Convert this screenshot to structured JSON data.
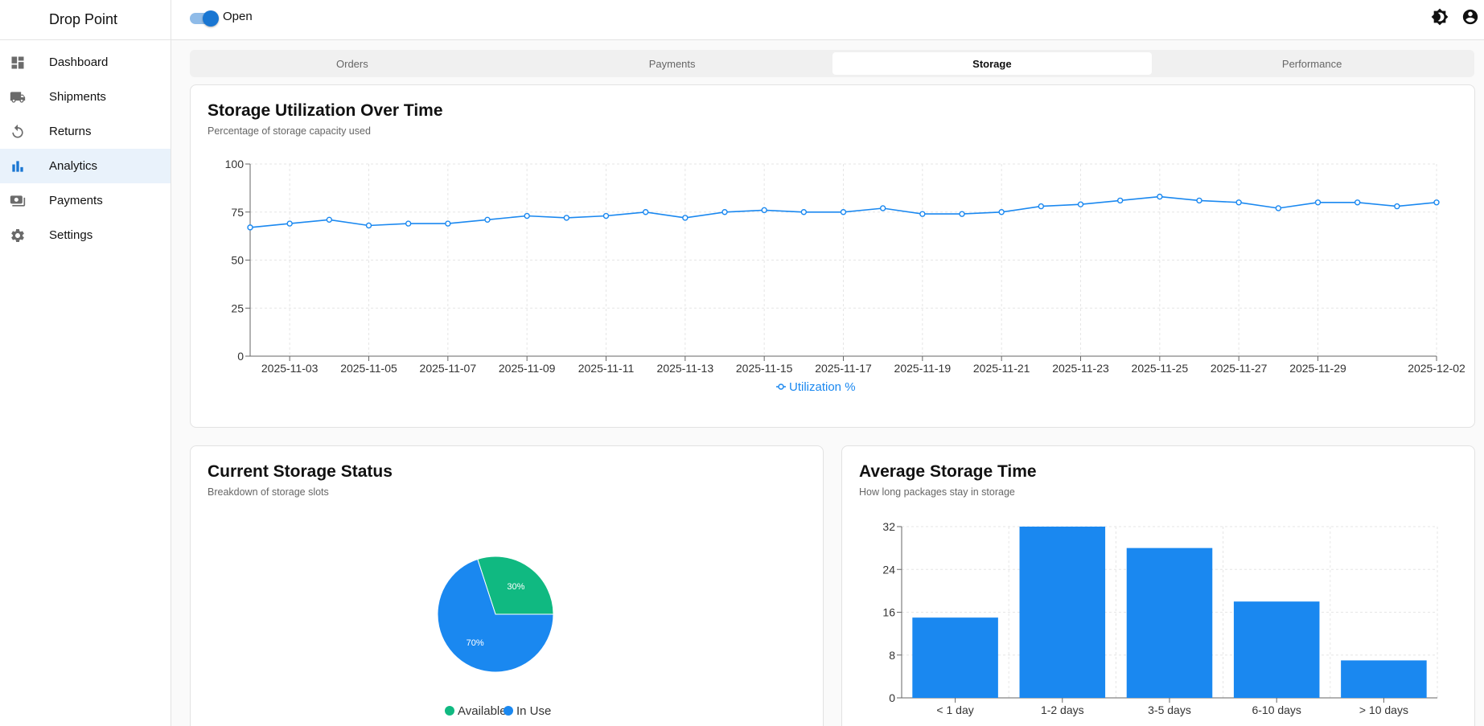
{
  "app": {
    "brand": "Drop Point"
  },
  "sidebar": {
    "items": [
      {
        "label": "Dashboard",
        "icon": "dashboard-icon",
        "active": false
      },
      {
        "label": "Shipments",
        "icon": "truck-icon",
        "active": false
      },
      {
        "label": "Returns",
        "icon": "undo-icon",
        "active": false
      },
      {
        "label": "Analytics",
        "icon": "bar-chart-icon",
        "active": true
      },
      {
        "label": "Payments",
        "icon": "payments-icon",
        "active": false
      },
      {
        "label": "Settings",
        "icon": "gear-icon",
        "active": false
      }
    ]
  },
  "topbar": {
    "status_label": "Open",
    "status_on": true,
    "theme_icon": "brightness-icon",
    "account_icon": "account-icon"
  },
  "tabs": [
    {
      "label": "Orders",
      "active": false
    },
    {
      "label": "Payments",
      "active": false
    },
    {
      "label": "Storage",
      "active": true
    },
    {
      "label": "Performance",
      "active": false
    }
  ],
  "colors": {
    "accent": "#1976d2",
    "series_blue": "#1a88f0",
    "series_green": "#10b981"
  },
  "utilization_card": {
    "title": "Storage Utilization Over Time",
    "subtitle": "Percentage of storage capacity used"
  },
  "status_card": {
    "title": "Current Storage Status",
    "subtitle": "Breakdown of storage slots"
  },
  "time_card": {
    "title": "Average Storage Time",
    "subtitle": "How long packages stay in storage"
  },
  "chart_data": [
    {
      "type": "line",
      "title": "Storage Utilization Over Time",
      "ylim": [
        0,
        100
      ],
      "yticks": [
        0,
        25,
        50,
        75,
        100
      ],
      "x": [
        "2025-11-02",
        "2025-11-03",
        "2025-11-04",
        "2025-11-05",
        "2025-11-06",
        "2025-11-07",
        "2025-11-08",
        "2025-11-09",
        "2025-11-10",
        "2025-11-11",
        "2025-11-12",
        "2025-11-13",
        "2025-11-14",
        "2025-11-15",
        "2025-11-16",
        "2025-11-17",
        "2025-11-18",
        "2025-11-19",
        "2025-11-20",
        "2025-11-21",
        "2025-11-22",
        "2025-11-23",
        "2025-11-24",
        "2025-11-25",
        "2025-11-26",
        "2025-11-27",
        "2025-11-28",
        "2025-11-29",
        "2025-11-30",
        "2025-12-01",
        "2025-12-02"
      ],
      "xtick_labels": [
        "2025-11-03",
        "2025-11-05",
        "2025-11-07",
        "2025-11-09",
        "2025-11-11",
        "2025-11-13",
        "2025-11-15",
        "2025-11-17",
        "2025-11-19",
        "2025-11-21",
        "2025-11-23",
        "2025-11-25",
        "2025-11-27",
        "2025-11-29",
        "2025-12-02"
      ],
      "series": [
        {
          "name": "Utilization %",
          "values": [
            67,
            69,
            71,
            68,
            69,
            69,
            71,
            73,
            72,
            73,
            75,
            72,
            75,
            76,
            75,
            75,
            77,
            74,
            74,
            75,
            78,
            79,
            81,
            83,
            81,
            80,
            77,
            80,
            80,
            78,
            80
          ]
        }
      ],
      "grid": true,
      "legend": "bottom-center"
    },
    {
      "type": "pie",
      "title": "Current Storage Status",
      "slices": [
        {
          "name": "Available",
          "value": 30,
          "label": "30%"
        },
        {
          "name": "In Use",
          "value": 70,
          "label": "70%"
        }
      ],
      "legend": "bottom-center"
    },
    {
      "type": "bar",
      "title": "Average Storage Time",
      "categories": [
        "< 1 day",
        "1-2 days",
        "3-5 days",
        "6-10 days",
        "> 10 days"
      ],
      "values": [
        15,
        32,
        28,
        18,
        7
      ],
      "ylim": [
        0,
        32
      ],
      "yticks": [
        0,
        8,
        16,
        24,
        32
      ],
      "grid": true
    }
  ]
}
